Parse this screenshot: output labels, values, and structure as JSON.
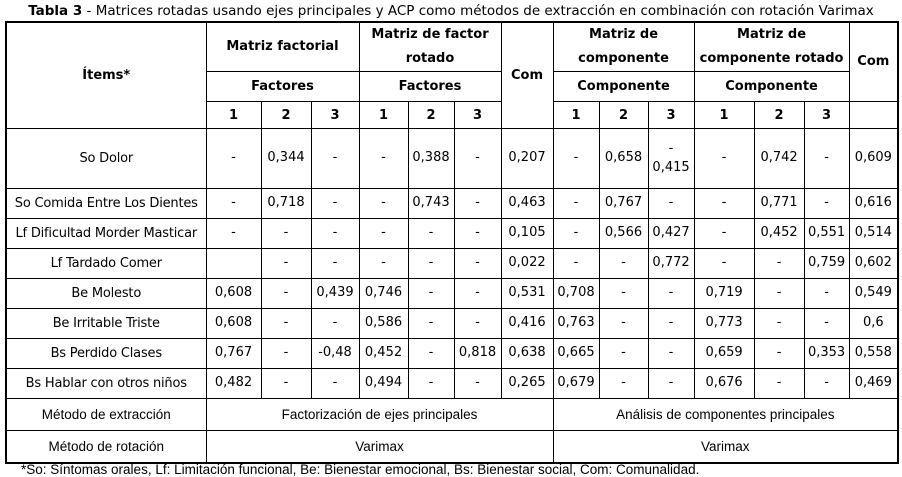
{
  "colors": {
    "border": "#000000",
    "text": "#000000",
    "background": "#ffffff"
  },
  "title": {
    "prefix": "Tabla 3",
    "rest": " - Matrices rotadas usando ejes principales y ACP como métodos de extracción en combinación con rotación Varimax"
  },
  "table": {
    "items_header": "Ítems*",
    "com_header": "Com",
    "groups": [
      {
        "label": "Matriz factorial",
        "sub": "Factores"
      },
      {
        "label": "Matriz de factor rotado",
        "sub": "Factores"
      },
      {
        "label": "Matriz de componente",
        "sub": "Componente"
      },
      {
        "label": "Matriz de componente rotado",
        "sub": "Componente"
      }
    ],
    "factor_numbers": [
      "1",
      "2",
      "3"
    ],
    "rows": [
      {
        "label": "So Dolor",
        "cells": [
          "-",
          "0,344",
          "-",
          "-",
          "0,388",
          "-",
          "0,207",
          "-",
          "0,658",
          "-\n0,415",
          "-",
          "0,742",
          "-",
          "0,609"
        ]
      },
      {
        "label": "So Comida Entre Los Dientes",
        "cells": [
          "-",
          "0,718",
          "-",
          "-",
          "0,743",
          "-",
          "0,463",
          "-",
          "0,767",
          "-",
          "-",
          "0,771",
          "-",
          "0,616"
        ]
      },
      {
        "label": "Lf Dificultad Morder Masticar",
        "cells": [
          "-",
          "-",
          "-",
          "-",
          "-",
          "-",
          "0,105",
          "-",
          "0,566",
          "0,427",
          "-",
          "0,452",
          "0,551",
          "0,514"
        ]
      },
      {
        "label": "Lf Tardado Comer",
        "cells": [
          "",
          "-",
          "-",
          "-",
          "-",
          "-",
          "0,022",
          "-",
          "-",
          "0,772",
          "-",
          "-",
          "0,759",
          "0,602"
        ]
      },
      {
        "label": "Be Molesto",
        "cells": [
          "0,608",
          "-",
          "0,439",
          "0,746",
          "-",
          "-",
          "0,531",
          "0,708",
          "-",
          "-",
          "0,719",
          "-",
          "-",
          "0,549"
        ]
      },
      {
        "label": "Be Irritable Triste",
        "cells": [
          "0,608",
          "-",
          "-",
          "0,586",
          "-",
          "-",
          "0,416",
          "0,763",
          "-",
          "-",
          "0,773",
          "-",
          "-",
          "0,6"
        ]
      },
      {
        "label": "Bs Perdido Clases",
        "cells": [
          "0,767",
          "-",
          "-0,48",
          "0,452",
          "-",
          "0,818",
          "0,638",
          "0,665",
          "-",
          "-",
          "0,659",
          "-",
          "0,353",
          "0,558"
        ]
      },
      {
        "label": "Bs Hablar con otros niños",
        "cells": [
          "0,482",
          "-",
          "-",
          "0,494",
          "-",
          "-",
          "0,265",
          "0,679",
          "-",
          "-",
          "0,676",
          "-",
          "-",
          "0,469"
        ]
      }
    ],
    "extraction": {
      "label": "Método de extracción",
      "left": "Factorización de ejes principales",
      "right": "Análisis de componentes principales"
    },
    "rotation": {
      "label": "Método de rotación",
      "left": "Varimax",
      "right": "Varimax"
    }
  },
  "footnote": "*So: Síntomas orales, Lf: Limitación funcional, Be: Bienestar emocional, Bs: Bienestar social, Com: Comunalidad."
}
